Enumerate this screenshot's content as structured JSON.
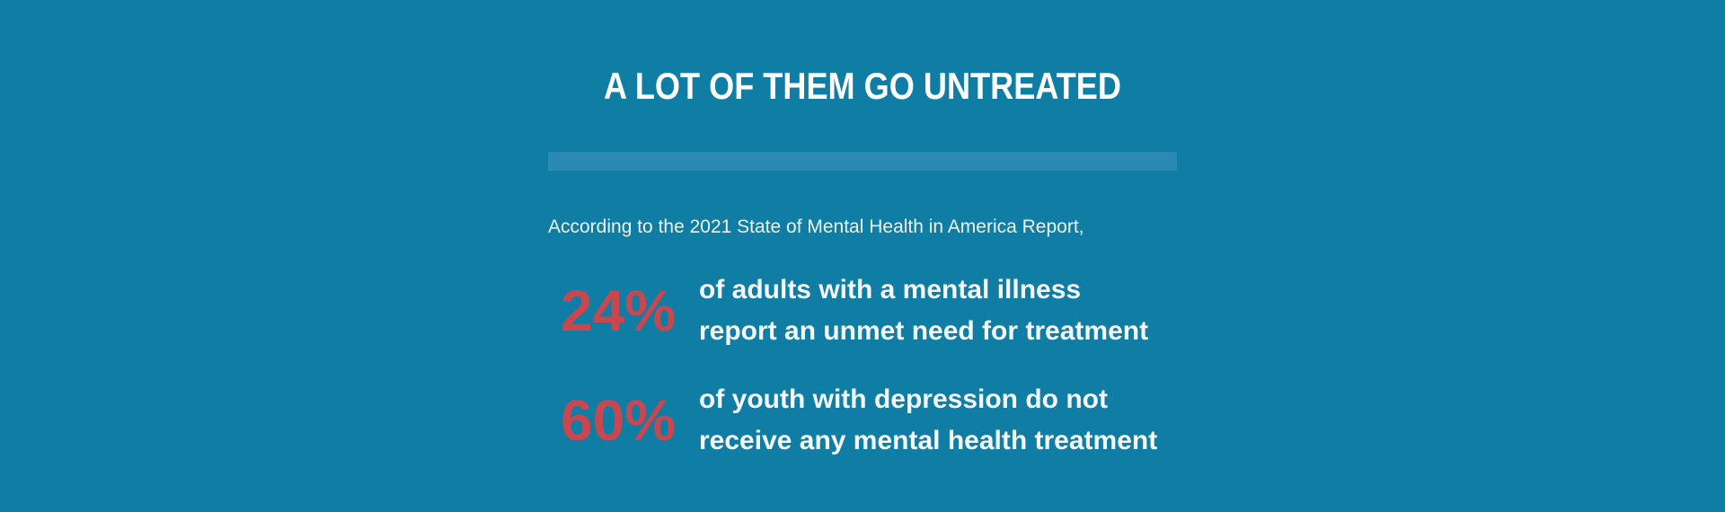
{
  "theme": {
    "background": "#0f7da4",
    "divider": "#2a8ab2",
    "accent": "#c9474f",
    "text": "#ffffff"
  },
  "heading": "A LOT OF THEM GO UNTREATED",
  "intro": "According to the 2021 State of Mental Health in America Report,",
  "stats": [
    {
      "value": "24%",
      "line1": "of adults with a mental illness",
      "line2": "report an unmet need for treatment"
    },
    {
      "value": "60%",
      "line1": "of youth with depression do not",
      "line2": "receive any mental health treatment"
    }
  ]
}
